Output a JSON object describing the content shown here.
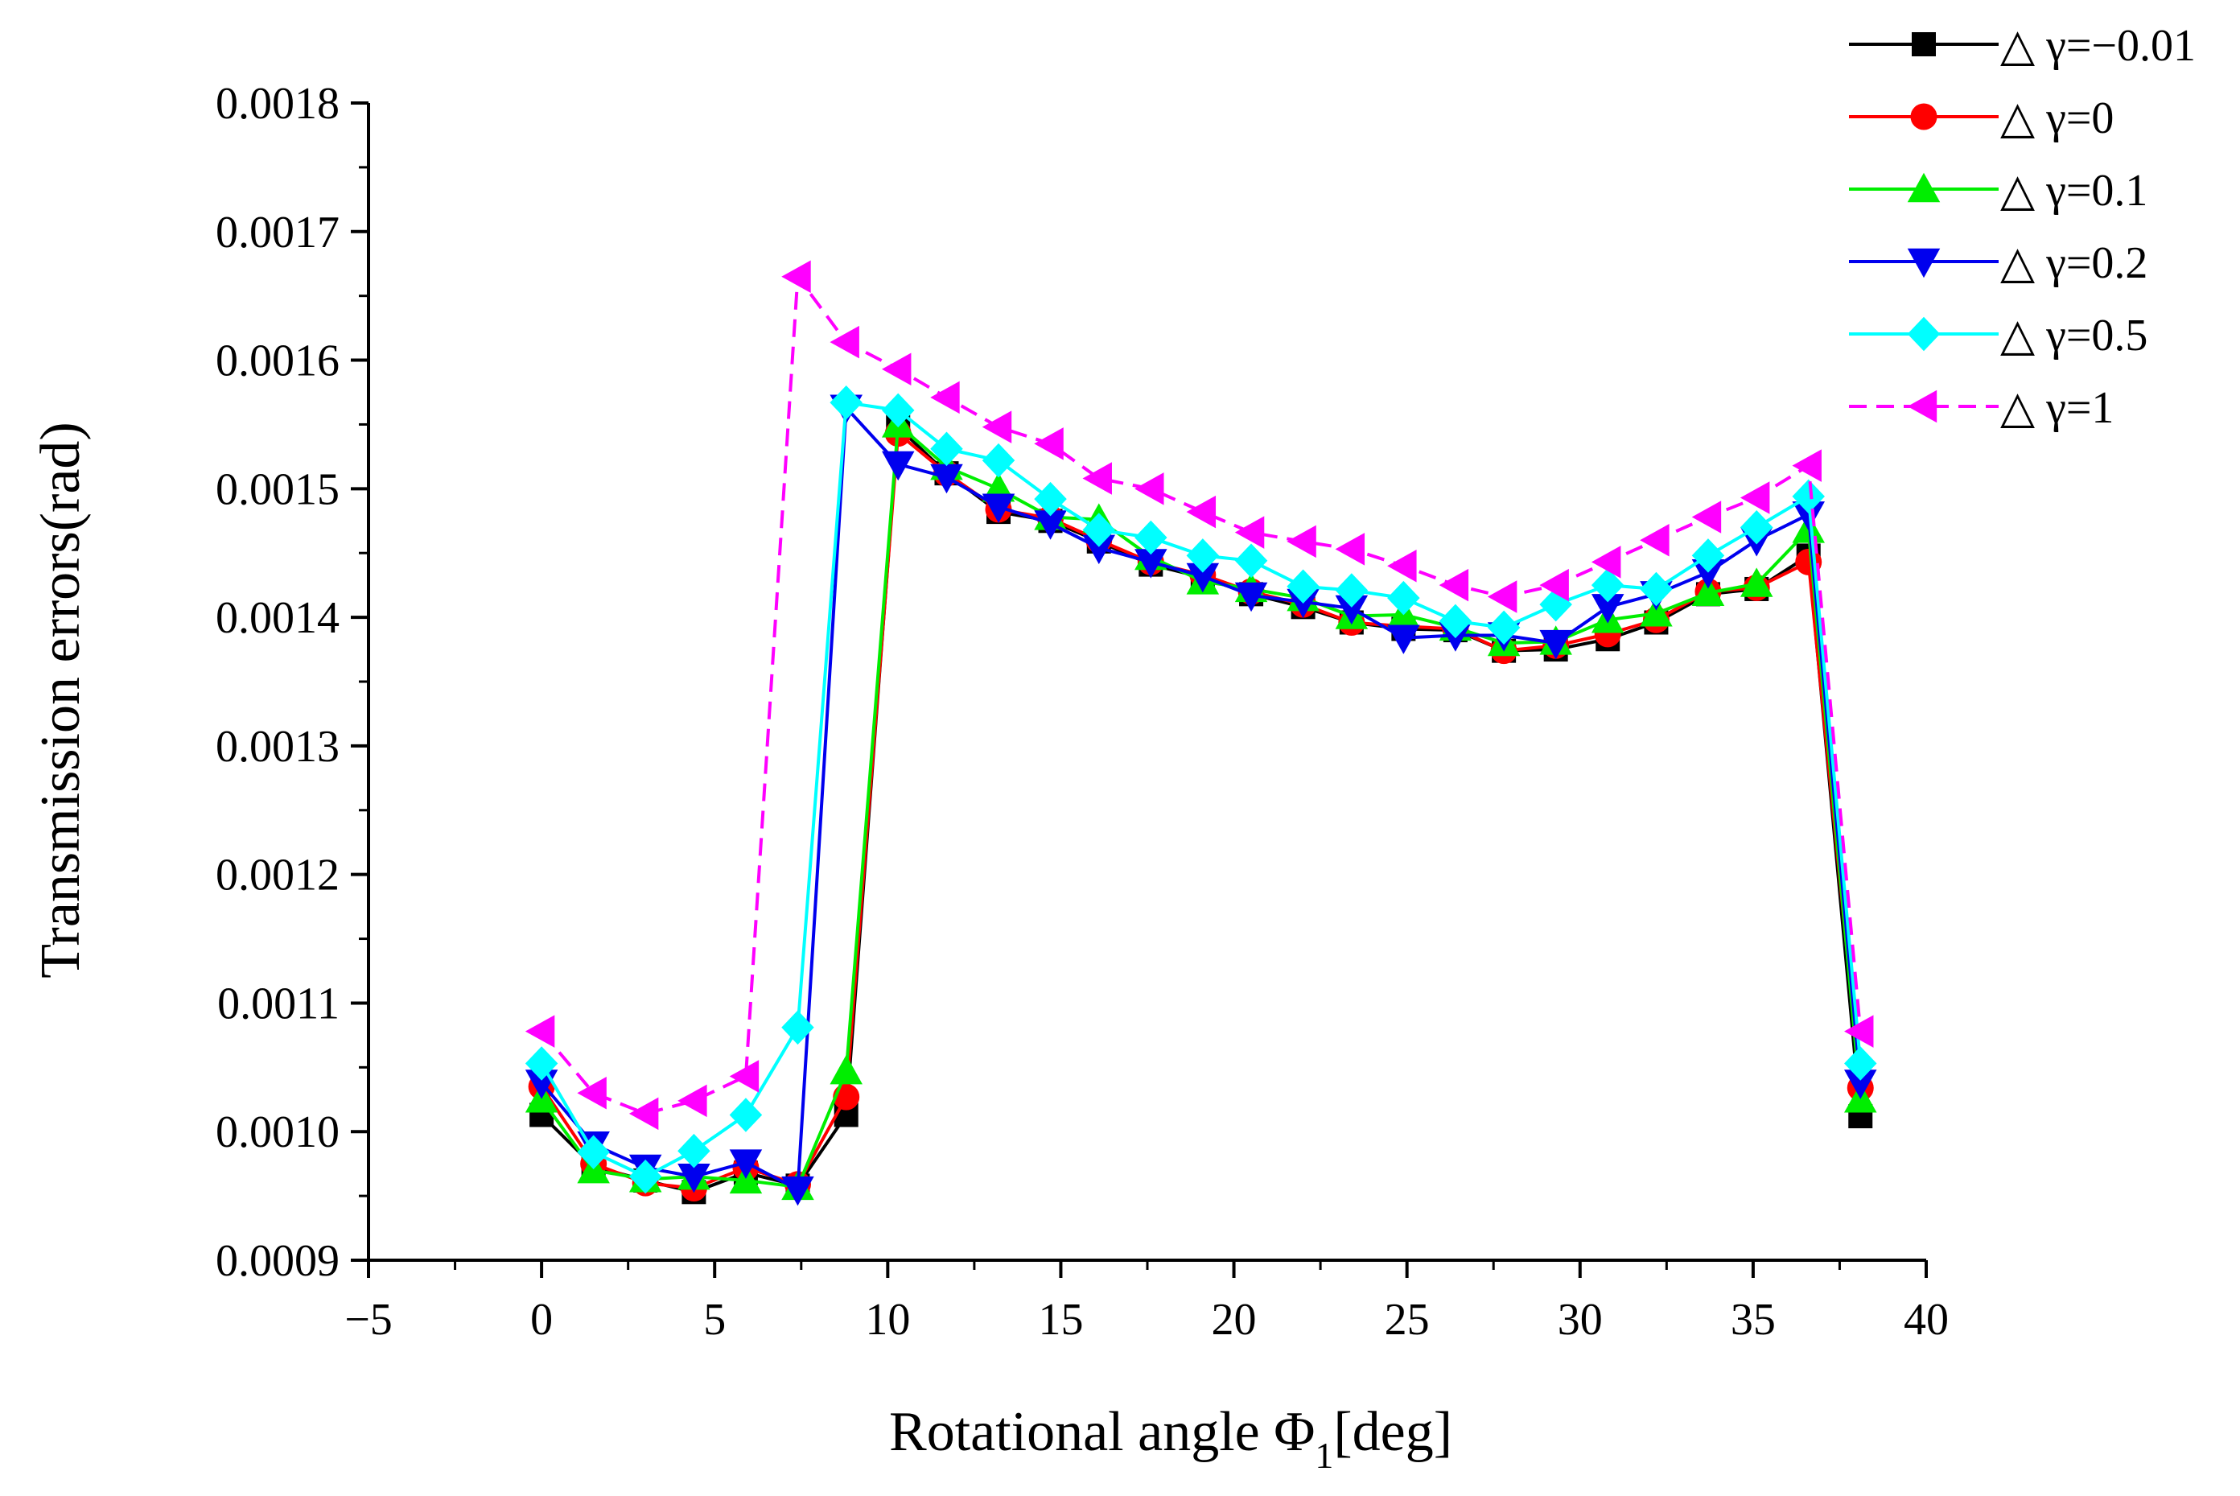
{
  "chart_data": {
    "type": "line",
    "title": "",
    "xlabel_main": "Rotational angle  Φ",
    "xlabel_sub": "1",
    "xlabel_tail": "[deg]",
    "ylabel": "Transmission errors(rad)",
    "xlim": [
      -5,
      40
    ],
    "ylim": [
      0.0009,
      0.0018
    ],
    "x_ticks": [
      "−5",
      "0",
      "5",
      "10",
      "15",
      "20",
      "25",
      "30",
      "35",
      "40"
    ],
    "x_tick_values": [
      -5,
      0,
      5,
      10,
      15,
      20,
      25,
      30,
      35,
      40
    ],
    "y_ticks": [
      "0.0009",
      "0.0010",
      "0.0011",
      "0.0012",
      "0.0013",
      "0.0014",
      "0.0015",
      "0.0016",
      "0.0017",
      "0.0018"
    ],
    "y_tick_values": [
      0.0009,
      0.001,
      0.0011,
      0.0012,
      0.0013,
      0.0014,
      0.0015,
      0.0016,
      0.0017,
      0.0018
    ],
    "legend_position": "top-right",
    "x": [
      0,
      1.5,
      3,
      4.4,
      5.9,
      7.4,
      8.8,
      10.3,
      11.7,
      13.2,
      14.7,
      16.1,
      17.6,
      19.1,
      20.5,
      22,
      23.4,
      24.9,
      26.4,
      27.8,
      29.3,
      30.8,
      32.2,
      33.7,
      35.1,
      36.6,
      38.1
    ],
    "series": [
      {
        "name": "△ γ=−0.01",
        "color": "#000000",
        "marker": "square",
        "dashed": false,
        "values": [
          0.001013,
          0.000973,
          0.000962,
          0.000953,
          0.000968,
          0.000958,
          0.001013,
          0.001548,
          0.001512,
          0.001482,
          0.001475,
          0.001459,
          0.001441,
          0.001431,
          0.001418,
          0.001408,
          0.001396,
          0.001391,
          0.00139,
          0.001374,
          0.001375,
          0.001383,
          0.001396,
          0.001418,
          0.001422,
          0.001448,
          0.001012
        ]
      },
      {
        "name": "△ γ=0",
        "color": "#ff0000",
        "marker": "circle",
        "dashed": false,
        "values": [
          0.001035,
          0.000975,
          0.00096,
          0.000956,
          0.000972,
          0.000959,
          0.001027,
          0.001543,
          0.001512,
          0.001484,
          0.001477,
          0.00146,
          0.001443,
          0.001433,
          0.00142,
          0.00141,
          0.001396,
          0.001393,
          0.001391,
          0.001374,
          0.001378,
          0.001387,
          0.001398,
          0.00142,
          0.001423,
          0.001443,
          0.001034
        ]
      },
      {
        "name": "△ γ=0.1",
        "color": "#00ee00",
        "marker": "triangle-up",
        "dashed": false,
        "values": [
          0.001025,
          0.00097,
          0.000963,
          0.000965,
          0.000962,
          0.000957,
          0.001047,
          0.00155,
          0.001517,
          0.0015,
          0.001478,
          0.001476,
          0.001447,
          0.001428,
          0.001422,
          0.001415,
          0.001401,
          0.001402,
          0.001392,
          0.00138,
          0.001381,
          0.001398,
          0.001403,
          0.001419,
          0.001426,
          0.001468,
          0.001025
        ]
      },
      {
        "name": "△ γ=0.2",
        "color": "#0000ee",
        "marker": "triangle-down",
        "dashed": false,
        "values": [
          0.001038,
          0.00099,
          0.000972,
          0.000965,
          0.000976,
          0.000955,
          0.001563,
          0.001519,
          0.001509,
          0.001486,
          0.001473,
          0.001454,
          0.001443,
          0.001432,
          0.001417,
          0.001412,
          0.001407,
          0.001384,
          0.001386,
          0.001386,
          0.00138,
          0.001408,
          0.001418,
          0.001435,
          0.00146,
          0.00148,
          0.001038
        ]
      },
      {
        "name": "△ γ=0.5",
        "color": "#00ffff",
        "marker": "diamond",
        "dashed": false,
        "values": [
          0.001053,
          0.000984,
          0.000965,
          0.000985,
          0.001013,
          0.001081,
          0.001567,
          0.001561,
          0.001531,
          0.001522,
          0.001492,
          0.001468,
          0.001462,
          0.001448,
          0.001444,
          0.001424,
          0.001421,
          0.001415,
          0.001397,
          0.001392,
          0.00141,
          0.001425,
          0.001422,
          0.001448,
          0.00147,
          0.001494,
          0.001053
        ]
      },
      {
        "name": "△ γ=1",
        "color": "#ff00ff",
        "marker": "triangle-left",
        "dashed": true,
        "values": [
          0.001078,
          0.00103,
          0.001014,
          0.001024,
          0.001043,
          0.001665,
          0.001614,
          0.001593,
          0.001571,
          0.001548,
          0.001535,
          0.001508,
          0.0015,
          0.001482,
          0.001466,
          0.001459,
          0.001453,
          0.00144,
          0.001425,
          0.001416,
          0.001425,
          0.001443,
          0.00146,
          0.001478,
          0.001493,
          0.001518,
          0.001078
        ]
      }
    ]
  }
}
